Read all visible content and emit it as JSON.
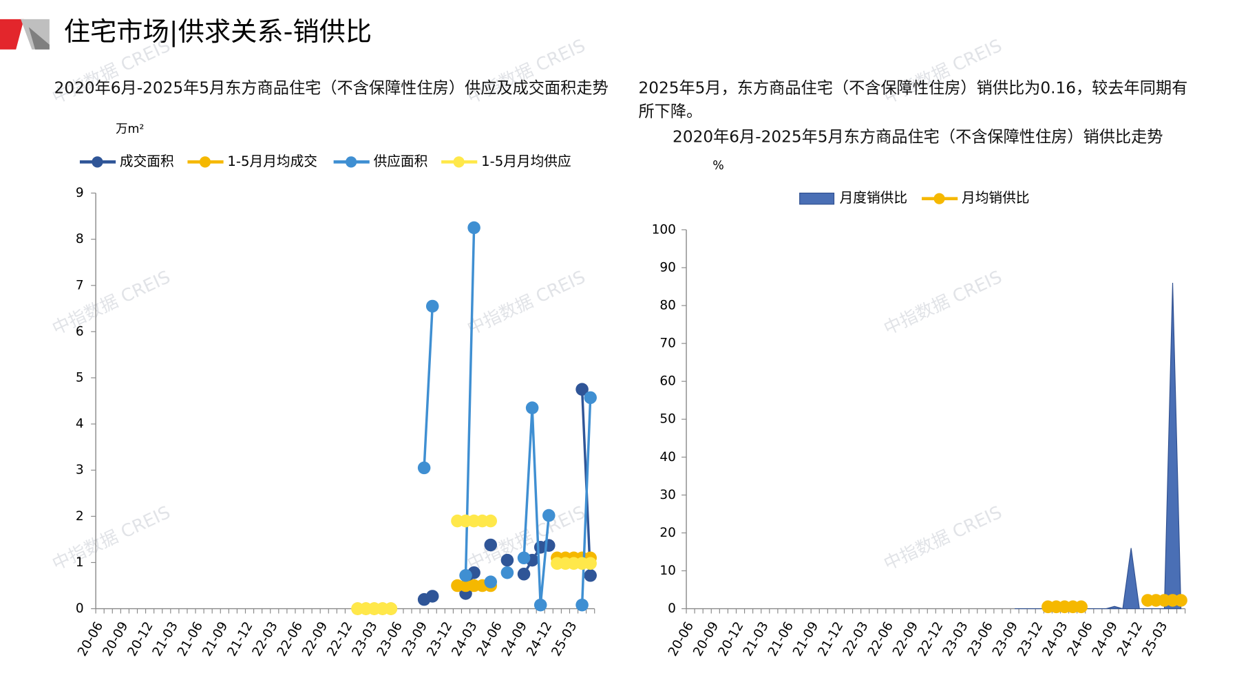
{
  "header": {
    "title": "住宅市场|供求关系-销供比"
  },
  "watermark": "中指数据 CREIS",
  "summary": "2025年5月，东方商品住宅（不含保障性住房）销供比为0.16，较去年同期有所下降。",
  "chart_data": [
    {
      "type": "line",
      "title": "2020年6月-2025年5月东方商品住宅（不含保障性住房）供应及成交面积走势",
      "y_unit": "万m²",
      "categories": [
        "20-06",
        null,
        null,
        "20-09",
        null,
        null,
        "20-12",
        null,
        null,
        "21-03",
        null,
        null,
        "21-06",
        null,
        null,
        "21-09",
        null,
        null,
        "21-12",
        null,
        null,
        "22-03",
        null,
        null,
        "22-06",
        null,
        null,
        "22-09",
        null,
        null,
        "22-12",
        null,
        null,
        "23-03",
        null,
        null,
        "23-06",
        null,
        null,
        "23-09",
        null,
        null,
        "23-12",
        null,
        null,
        "24-03",
        null,
        null,
        "24-06",
        null,
        null,
        "24-09",
        null,
        null,
        "24-12",
        null,
        null,
        "25-03",
        null,
        null
      ],
      "ylim": [
        0,
        9
      ],
      "yticks": [
        0,
        1,
        2,
        3,
        4,
        5,
        6,
        7,
        8,
        9
      ],
      "legend": "top",
      "series": [
        {
          "name": "成交面积",
          "color": "#2f5597",
          "values": [
            null,
            null,
            null,
            null,
            null,
            null,
            null,
            null,
            null,
            null,
            null,
            null,
            null,
            null,
            null,
            null,
            null,
            null,
            null,
            null,
            null,
            null,
            null,
            null,
            null,
            null,
            null,
            null,
            null,
            null,
            null,
            null,
            null,
            null,
            null,
            null,
            null,
            null,
            null,
            0.2,
            0.27,
            null,
            null,
            null,
            0.33,
            0.78,
            null,
            1.38,
            null,
            1.05,
            null,
            0.75,
            1.05,
            1.33,
            1.37,
            null,
            null,
            null,
            4.75,
            0.72
          ]
        },
        {
          "name": "1-5月月均成交",
          "color": "#f5b800",
          "values": [
            null,
            null,
            null,
            null,
            null,
            null,
            null,
            null,
            null,
            null,
            null,
            null,
            null,
            null,
            null,
            null,
            null,
            null,
            null,
            null,
            null,
            null,
            null,
            null,
            null,
            null,
            null,
            null,
            null,
            null,
            null,
            0,
            0,
            0,
            0,
            0,
            null,
            null,
            null,
            null,
            null,
            null,
            null,
            0.5,
            0.5,
            0.5,
            0.5,
            0.5,
            null,
            null,
            null,
            null,
            null,
            null,
            null,
            1.1,
            1.1,
            1.1,
            1.1,
            1.1
          ]
        },
        {
          "name": "供应面积",
          "color": "#3f8fd2",
          "values": [
            null,
            null,
            null,
            null,
            null,
            null,
            null,
            null,
            null,
            null,
            null,
            null,
            null,
            null,
            null,
            null,
            null,
            null,
            null,
            null,
            null,
            null,
            null,
            null,
            null,
            null,
            null,
            null,
            null,
            null,
            null,
            null,
            null,
            null,
            null,
            null,
            null,
            null,
            null,
            3.05,
            6.55,
            null,
            null,
            null,
            0.72,
            8.25,
            null,
            0.58,
            null,
            0.78,
            null,
            1.1,
            4.35,
            0.08,
            2.02,
            null,
            null,
            null,
            0.08,
            4.57
          ]
        },
        {
          "name": "1-5月月均供应",
          "color": "#ffe84a",
          "values": [
            null,
            null,
            null,
            null,
            null,
            null,
            null,
            null,
            null,
            null,
            null,
            null,
            null,
            null,
            null,
            null,
            null,
            null,
            null,
            null,
            null,
            null,
            null,
            null,
            null,
            null,
            null,
            null,
            null,
            null,
            null,
            0,
            0,
            0,
            0,
            0,
            null,
            null,
            null,
            null,
            null,
            null,
            null,
            1.9,
            1.9,
            1.9,
            1.9,
            1.9,
            null,
            null,
            null,
            null,
            null,
            null,
            null,
            0.98,
            0.98,
            0.98,
            0.98,
            0.98
          ]
        }
      ]
    },
    {
      "type": "combo",
      "title": "2020年6月-2025年5月东方商品住宅（不含保障性住房）销供比走势",
      "y_unit": "%",
      "categories": [
        "20-06",
        null,
        null,
        "20-09",
        null,
        null,
        "20-12",
        null,
        null,
        "21-03",
        null,
        null,
        "21-06",
        null,
        null,
        "21-09",
        null,
        null,
        "21-12",
        null,
        null,
        "22-03",
        null,
        null,
        "22-06",
        null,
        null,
        "22-09",
        null,
        null,
        "22-12",
        null,
        null,
        "23-03",
        null,
        null,
        "23-06",
        null,
        null,
        "23-09",
        null,
        null,
        "23-12",
        null,
        null,
        "24-03",
        null,
        null,
        "24-06",
        null,
        null,
        "24-09",
        null,
        null,
        "24-12",
        null,
        null,
        "25-03",
        null,
        null
      ],
      "ylim": [
        0,
        100
      ],
      "yticks": [
        0,
        10,
        20,
        30,
        40,
        50,
        60,
        70,
        80,
        90,
        100
      ],
      "legend": "top",
      "series": [
        {
          "name": "月度销供比",
          "type": "area",
          "color": "#4a6fb5",
          "values": [
            null,
            null,
            null,
            null,
            null,
            null,
            null,
            null,
            null,
            null,
            null,
            null,
            null,
            null,
            null,
            null,
            null,
            null,
            null,
            null,
            null,
            null,
            null,
            null,
            null,
            null,
            null,
            null,
            null,
            null,
            null,
            null,
            null,
            null,
            null,
            null,
            null,
            null,
            null,
            0,
            0,
            0,
            0,
            0,
            0,
            0,
            0,
            0,
            0,
            0,
            0,
            0.6,
            0,
            16,
            0,
            0,
            0,
            0,
            86,
            0
          ]
        },
        {
          "name": "月均销供比",
          "type": "line",
          "color": "#f5b800",
          "values": [
            null,
            null,
            null,
            null,
            null,
            null,
            null,
            null,
            null,
            null,
            null,
            null,
            null,
            null,
            null,
            null,
            null,
            null,
            null,
            null,
            null,
            null,
            null,
            null,
            null,
            null,
            null,
            null,
            null,
            null,
            null,
            null,
            null,
            null,
            null,
            null,
            null,
            null,
            null,
            null,
            null,
            null,
            null,
            0.5,
            0.5,
            0.5,
            0.5,
            0.5,
            null,
            null,
            null,
            null,
            null,
            null,
            null,
            2.2,
            2.2,
            2.2,
            2.2,
            2.2
          ]
        }
      ]
    }
  ]
}
